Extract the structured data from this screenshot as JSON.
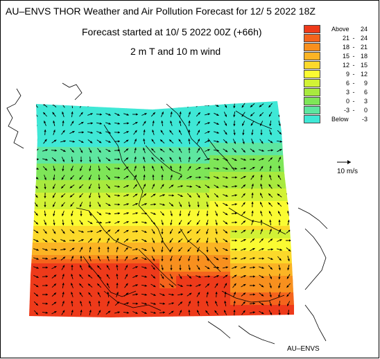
{
  "title_line1": "AU–ENVS THOR Weather and Air Pollution Forecast for 12/ 5 2022  18Z",
  "title_line2": "Forecast started at 10/ 5 2022  00Z (+66h)",
  "title_line3": "2 m T and 10 m wind",
  "legend": [
    {
      "kind": "text",
      "text": "Above",
      "value": "24",
      "color": "#ee3a1a"
    },
    {
      "kind": "range",
      "lo": "21",
      "hi": "24",
      "color": "#f4641c"
    },
    {
      "kind": "range",
      "lo": "18",
      "hi": "21",
      "color": "#f8901e"
    },
    {
      "kind": "range",
      "lo": "15",
      "hi": "18",
      "color": "#fbb424"
    },
    {
      "kind": "range",
      "lo": "12",
      "hi": "15",
      "color": "#fcd92a"
    },
    {
      "kind": "range",
      "lo": "9",
      "hi": "12",
      "color": "#fafb32"
    },
    {
      "kind": "range",
      "lo": "6",
      "hi": "9",
      "color": "#d2f235"
    },
    {
      "kind": "range",
      "lo": "3",
      "hi": "6",
      "color": "#a8ea3e"
    },
    {
      "kind": "range",
      "lo": "0",
      "hi": "3",
      "color": "#7ee658"
    },
    {
      "kind": "range",
      "lo": "-3",
      "hi": "0",
      "color": "#5ee6a0"
    },
    {
      "kind": "text",
      "text": "Below",
      "value": "-3",
      "color": "#3fe8d6"
    }
  ],
  "wind_reference_label": "10 m/s",
  "credit": "AU–ENVS",
  "colors": {
    "coast": "#000000",
    "arrow": "#000000",
    "background": "#ffffff"
  }
}
